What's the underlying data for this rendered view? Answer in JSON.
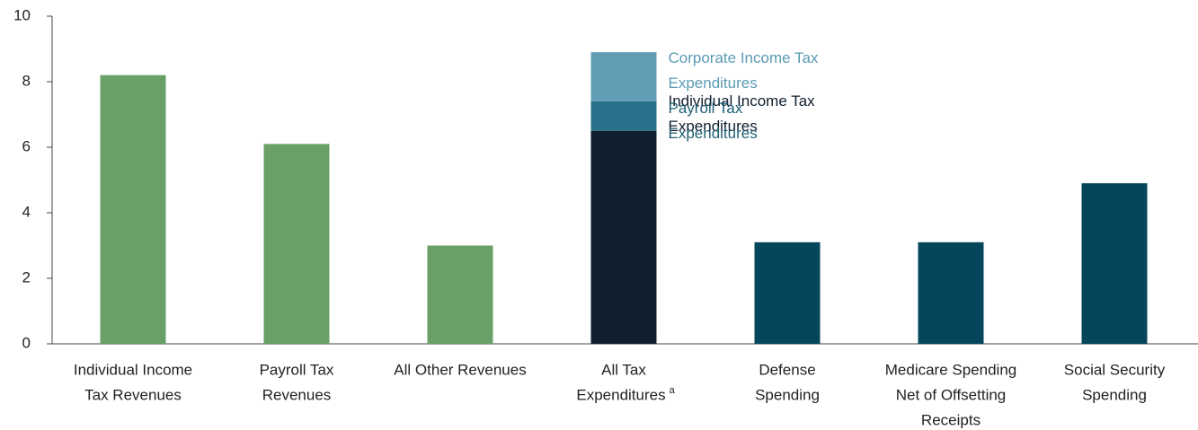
{
  "chart_data": {
    "type": "bar",
    "categories": [
      [
        "Individual Income",
        "Tax Revenues"
      ],
      [
        "Payroll Tax",
        "Revenues"
      ],
      [
        "All Other Revenues"
      ],
      [
        "All Tax",
        "Expenditures"
      ],
      [
        "Defense",
        "Spending"
      ],
      [
        "Medicare Spending",
        "Net of Offsetting",
        "Receipts"
      ],
      [
        "Social Security",
        "Spending"
      ]
    ],
    "category_markers": [
      null,
      null,
      null,
      "a",
      null,
      null,
      null
    ],
    "values": [
      8.2,
      6.1,
      3.0,
      null,
      3.1,
      3.1,
      4.9
    ],
    "colors": [
      "#68a068",
      "#68a068",
      "#68a068",
      null,
      "#05465c",
      "#05465c",
      "#05465c"
    ],
    "stack": {
      "index": 3,
      "segments": [
        {
          "name": [
            "Individual Income Tax",
            "Expenditures"
          ],
          "value": 6.5,
          "color": "#0f1f30",
          "label_color": "#0f1f30"
        },
        {
          "name": [
            "Payroll Tax",
            "Expenditures"
          ],
          "value": 0.9,
          "color": "#27718a",
          "label_color": "#1f5f73"
        },
        {
          "name": [
            "Corporate Income Tax",
            "Expenditures"
          ],
          "value": 1.5,
          "color": "#629db6",
          "label_color": "#5b9bb5"
        }
      ]
    },
    "ylim": [
      0,
      10
    ],
    "yticks": [
      0,
      2,
      4,
      6,
      8,
      10
    ]
  }
}
